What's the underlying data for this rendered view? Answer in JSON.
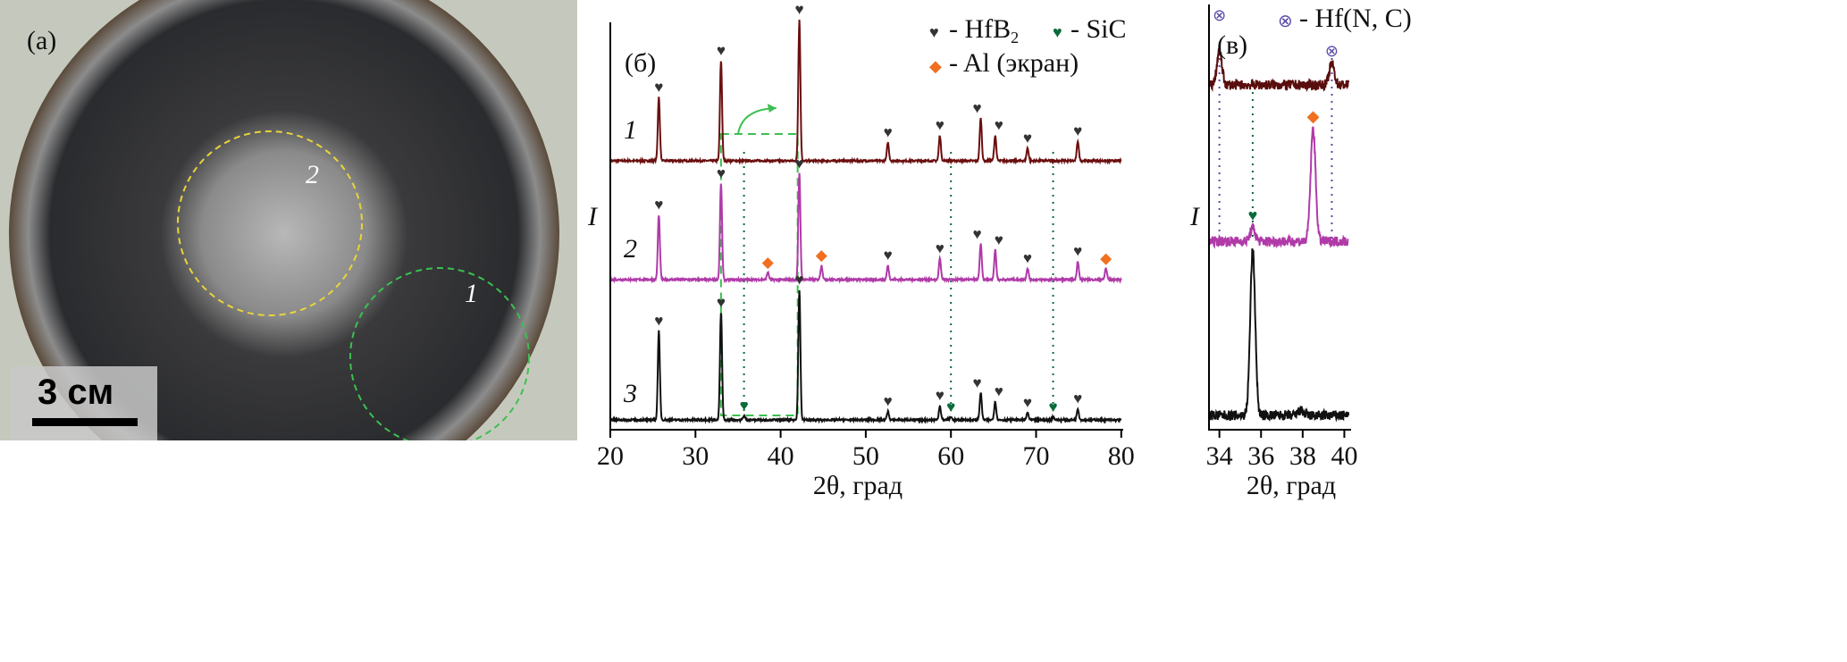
{
  "photo": {
    "panel_label": "(а)",
    "region_labels": [
      "2",
      "1"
    ],
    "scale_bar": "3 см"
  },
  "chart_data": [
    {
      "type": "line",
      "panel_label": "(б)",
      "xlabel": "2θ, град",
      "ylabel": "I",
      "xlim": [
        20,
        80
      ],
      "xticks": [
        "20",
        "30",
        "40",
        "50",
        "60",
        "70",
        "80"
      ],
      "grid": false,
      "legend": [
        {
          "symbol": "♥",
          "color": "#333333",
          "label": "- HfB",
          "sub": "2"
        },
        {
          "symbol": "♥",
          "color": "#0a6b3a",
          "label": "- SiC"
        },
        {
          "symbol": "◆",
          "color": "#f07020",
          "label": "- Al (экран)"
        }
      ],
      "legend_position": "top-right",
      "phase_positions": {
        "HfB2": [
          25.7,
          33.0,
          42.2,
          52.6,
          58.7,
          63.5,
          65.2,
          69.0,
          74.9
        ],
        "SiC": [
          35.7,
          60.0,
          72.0
        ],
        "Al": [
          38.5,
          44.8,
          78.2
        ]
      },
      "series": [
        {
          "name": "1",
          "color": "#6b0f0f",
          "hfb2_intensity": [
            45,
            71,
            100,
            13,
            18,
            30,
            18,
            9,
            14
          ],
          "sic_intensity": [
            0,
            0,
            0
          ],
          "al_intensity": [
            0,
            0,
            0
          ]
        },
        {
          "name": "2",
          "color": "#b03aa8",
          "hfb2_intensity": [
            46,
            68,
            75,
            10,
            15,
            25,
            21,
            8,
            13
          ],
          "sic_intensity": [
            0,
            0,
            0
          ],
          "al_intensity": [
            5,
            10,
            8
          ]
        },
        {
          "name": "3",
          "color": "#111111",
          "hfb2_intensity": [
            63,
            76,
            92,
            6,
            10,
            19,
            13,
            5,
            8
          ],
          "sic_intensity": [
            3,
            2,
            2
          ],
          "al_intensity": [
            0,
            0,
            0
          ]
        }
      ],
      "annotations": {
        "zoom_region_x": [
          33,
          42
        ]
      }
    },
    {
      "type": "line",
      "panel_label": "(в)",
      "xlabel": "2θ, град",
      "ylabel": "I",
      "xlim": [
        33.5,
        40.2
      ],
      "xticks": [
        "34",
        "36",
        "38",
        "40"
      ],
      "legend": [
        {
          "symbol": "⊗",
          "color": "#5a4aa8",
          "label": "- Hf(N, C)"
        }
      ],
      "series": [
        {
          "name": "1",
          "color": "#5a0d0d",
          "peaks": [
            {
              "x": 34.0,
              "i": 20,
              "phase": "Hf(N,C)"
            },
            {
              "x": 39.4,
              "i": 13,
              "phase": "Hf(N,C)"
            }
          ]
        },
        {
          "name": "2",
          "color": "#b03aa8",
          "peaks": [
            {
              "x": 35.6,
              "i": 8,
              "phase": "SiC"
            },
            {
              "x": 38.5,
              "i": 68,
              "phase": "Al"
            }
          ]
        },
        {
          "name": "3",
          "color": "#111111",
          "peaks": [
            {
              "x": 35.6,
              "i": 100,
              "phase": "SiC"
            },
            {
              "x": 37.9,
              "i": 3,
              "phase": ""
            }
          ]
        }
      ],
      "guides": [
        {
          "x": 34.0,
          "color": "#5a4aa8"
        },
        {
          "x": 35.6,
          "color": "#0a6b3a"
        },
        {
          "x": 39.4,
          "color": "#5a4aa8"
        }
      ]
    }
  ]
}
